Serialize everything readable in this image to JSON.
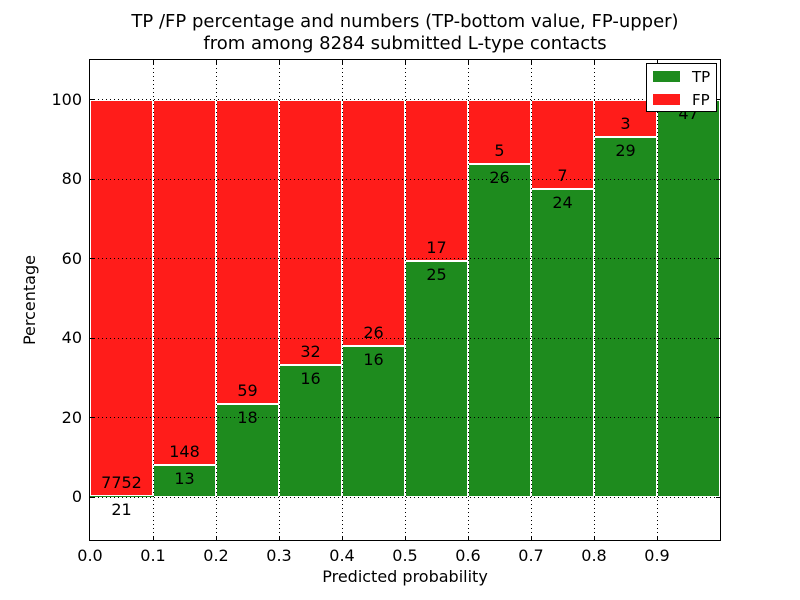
{
  "figure": {
    "title_line1": "TP /FP percentage and numbers (TP-bottom value, FP-upper)",
    "title_line2": "from among 8284 submitted L-type contacts",
    "background_color": "#ffffff"
  },
  "axes": {
    "xlabel": "Predicted probability",
    "ylabel": "Percentage",
    "xtick_labels": [
      "0.0",
      "0.1",
      "0.2",
      "0.3",
      "0.4",
      "0.5",
      "0.6",
      "0.7",
      "0.8",
      "0.9"
    ],
    "xtick_values": [
      0.0,
      0.1,
      0.2,
      0.3,
      0.4,
      0.5,
      0.6,
      0.7,
      0.8,
      0.9
    ],
    "ytick_labels": [
      "0",
      "20",
      "40",
      "60",
      "80",
      "100"
    ],
    "ytick_values": [
      0,
      20,
      40,
      60,
      80,
      100
    ],
    "xlim": [
      0.0,
      1.0
    ],
    "ylim": [
      -10.8,
      110
    ],
    "grid_style": "dotted black"
  },
  "legend": {
    "position": "upper right",
    "entries": [
      {
        "label": "TP",
        "color": "#1e8b1e",
        "swatch": "tp-swatch"
      },
      {
        "label": "FP",
        "color": "#ff1c1a",
        "swatch": "fp-swatch"
      }
    ]
  },
  "chart_data": {
    "type": "bar",
    "stacked": true,
    "normalized": "each bin scaled to 100%",
    "title": "TP /FP percentage and numbers (TP-bottom value, FP-upper) from among 8284 submitted L-type contacts",
    "xlabel": "Predicted probability",
    "ylabel": "Percentage",
    "bin_width": 0.1,
    "bin_starts": [
      0.0,
      0.1,
      0.2,
      0.3,
      0.4,
      0.5,
      0.6,
      0.7,
      0.8,
      0.9
    ],
    "categories": [
      "0.0-0.1",
      "0.1-0.2",
      "0.2-0.3",
      "0.3-0.4",
      "0.4-0.5",
      "0.5-0.6",
      "0.6-0.7",
      "0.7-0.8",
      "0.8-0.9",
      "0.9-1.0"
    ],
    "series": [
      {
        "name": "TP",
        "color": "#1e8b1e",
        "counts": [
          21,
          13,
          18,
          16,
          16,
          25,
          26,
          24,
          29,
          47
        ]
      },
      {
        "name": "FP",
        "color": "#ff1c1a",
        "counts": [
          7752,
          148,
          59,
          32,
          26,
          17,
          5,
          7,
          3,
          0
        ]
      }
    ],
    "tp_percent": [
      0.27,
      8.07,
      23.38,
      33.33,
      38.1,
      59.52,
      83.87,
      77.42,
      90.63,
      100.0
    ],
    "total_submitted": 8284,
    "bar_label_rule": "TP count printed just below TP/FP boundary, FP count just above; FP label omitted when FP=0",
    "grid": true,
    "legend_position": "upper right",
    "ylim": [
      -10.8,
      110
    ],
    "xlim": [
      0.0,
      1.0
    ]
  }
}
